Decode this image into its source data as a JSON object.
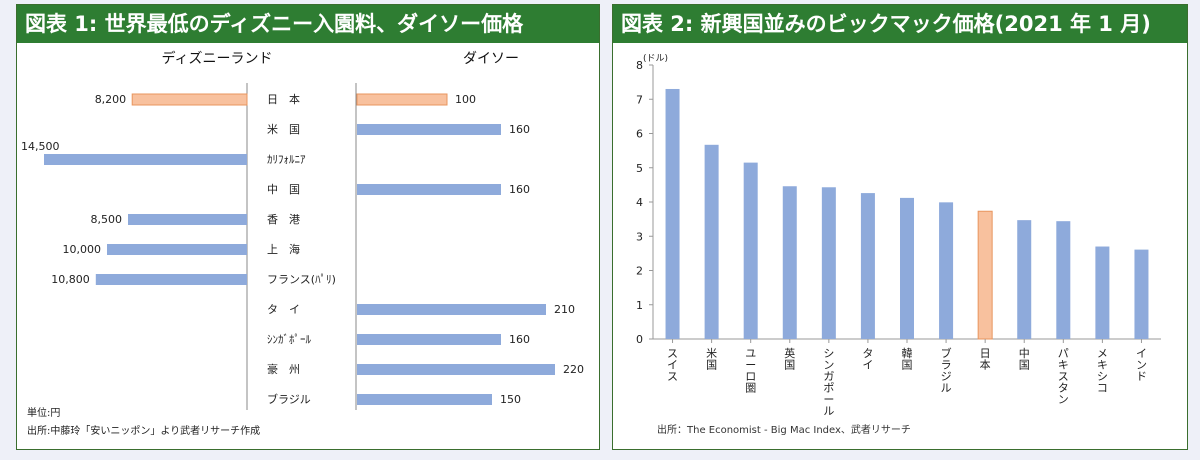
{
  "colors": {
    "bar": "#8eaadb",
    "highlight": "#f8c19e",
    "highlight_stroke": "#e8955e",
    "header_bg": "#2e7d32"
  },
  "chart_data": [
    {
      "type": "bar",
      "title": "図表 1: 世界最低のディズニー入園料、ダイソー価格",
      "left_header": "ディズニーランド",
      "right_header": "ダイソー",
      "categories": [
        "日　本",
        "米　国",
        "ｶﾘﾌｫﾙﾆｱ",
        "中　国",
        "香　港",
        "上　海",
        "フランス(ﾊﾟﾘ)",
        "タ　イ",
        "ｼﾝｶﾞﾎﾟｰﾙ",
        "豪　州",
        "ブラジル"
      ],
      "series": [
        {
          "name": "ディズニーランド",
          "values": [
            8200,
            null,
            14500,
            null,
            8500,
            10000,
            10800,
            null,
            null,
            null,
            null
          ],
          "labels": [
            "8,200",
            "",
            "14,500",
            "",
            "8,500",
            "10,000",
            "10,800",
            "",
            "",
            "",
            ""
          ]
        },
        {
          "name": "ダイソー",
          "values": [
            100,
            160,
            null,
            160,
            null,
            null,
            null,
            210,
            160,
            220,
            150
          ],
          "labels": [
            "100",
            "160",
            "",
            "160",
            "",
            "",
            "",
            "210",
            "160",
            "220",
            "150"
          ]
        }
      ],
      "highlight_index": 0,
      "unit_note": "単位:円",
      "source": "出所:中藤玲「安いニッポン」より武者リサーチ作成"
    },
    {
      "type": "bar",
      "title": "図表 2: 新興国並みのビックマック価格(2021 年 1 月)",
      "ylabel": "(ドル)",
      "categories": [
        "スイス",
        "米国",
        "ユーロ圏",
        "英国",
        "シンガポール",
        "タイ",
        "韓国",
        "ブラジル",
        "日本",
        "中国",
        "パキスタン",
        "メキシコ",
        "インド"
      ],
      "values": [
        7.3,
        5.67,
        5.15,
        4.46,
        4.43,
        4.26,
        4.12,
        3.99,
        3.73,
        3.47,
        3.44,
        2.7,
        2.61
      ],
      "highlight_index": 8,
      "ylim": [
        0,
        8
      ],
      "yticks": [
        "0",
        "1",
        "2",
        "3",
        "4",
        "5",
        "6",
        "7",
        "8"
      ],
      "source": "出所：The Economist - Big Mac Index、武者リサーチ"
    }
  ]
}
